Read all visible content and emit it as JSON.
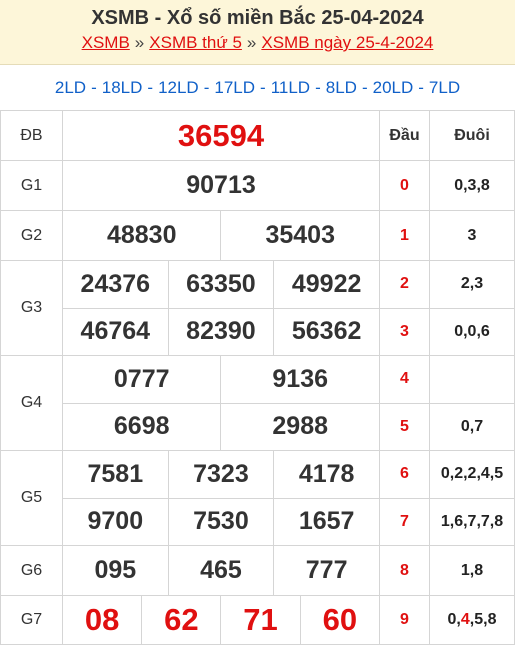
{
  "header": {
    "title": "XSMB - Xổ số miền Bắc 25-04-2024",
    "links": [
      "XSMB",
      "XSMB thứ 5",
      "XSMB ngày 25-4-2024"
    ],
    "separator": "»"
  },
  "codes": {
    "items": [
      "2LD",
      "18LD",
      "12LD",
      "17LD",
      "11LD",
      "8LD",
      "20LD",
      "7LD"
    ],
    "separator": "-"
  },
  "prizes": [
    {
      "label": "ĐB",
      "numbers": [
        "36594"
      ]
    },
    {
      "label": "G1",
      "numbers": [
        "90713"
      ]
    },
    {
      "label": "G2",
      "numbers": [
        "48830",
        "35403"
      ]
    },
    {
      "label": "G3",
      "numbers": [
        "24376",
        "63350",
        "49922",
        "46764",
        "82390",
        "56362"
      ]
    },
    {
      "label": "G4",
      "numbers": [
        "0777",
        "9136",
        "6698",
        "2988"
      ]
    },
    {
      "label": "G5",
      "numbers": [
        "7581",
        "7323",
        "4178",
        "9700",
        "7530",
        "1657"
      ]
    },
    {
      "label": "G6",
      "numbers": [
        "095",
        "465",
        "777"
      ]
    },
    {
      "label": "G7",
      "numbers": [
        "08",
        "62",
        "71",
        "60"
      ]
    }
  ],
  "loto": {
    "headers": [
      "Đầu",
      "Đuôi"
    ],
    "rows": [
      {
        "dau": "0",
        "duoi": [
          {
            "text": "0,3,8"
          }
        ]
      },
      {
        "dau": "1",
        "duoi": [
          {
            "text": "3"
          }
        ]
      },
      {
        "dau": "2",
        "duoi": [
          {
            "text": "2,3"
          }
        ]
      },
      {
        "dau": "3",
        "duoi": [
          {
            "text": "0,0,6"
          }
        ]
      },
      {
        "dau": "4",
        "duoi": []
      },
      {
        "dau": "5",
        "duoi": [
          {
            "text": "0,7"
          }
        ]
      },
      {
        "dau": "6",
        "duoi": [
          {
            "text": "0,2,2,4,5"
          }
        ]
      },
      {
        "dau": "7",
        "duoi": [
          {
            "text": "1,6,7,7,8"
          }
        ]
      },
      {
        "dau": "8",
        "duoi": [
          {
            "text": "1,8"
          }
        ]
      },
      {
        "dau": "9",
        "duoi": [
          {
            "text": "0,"
          },
          {
            "text": "4",
            "color": "#e01010"
          },
          {
            "text": ",5,8"
          }
        ]
      }
    ]
  }
}
